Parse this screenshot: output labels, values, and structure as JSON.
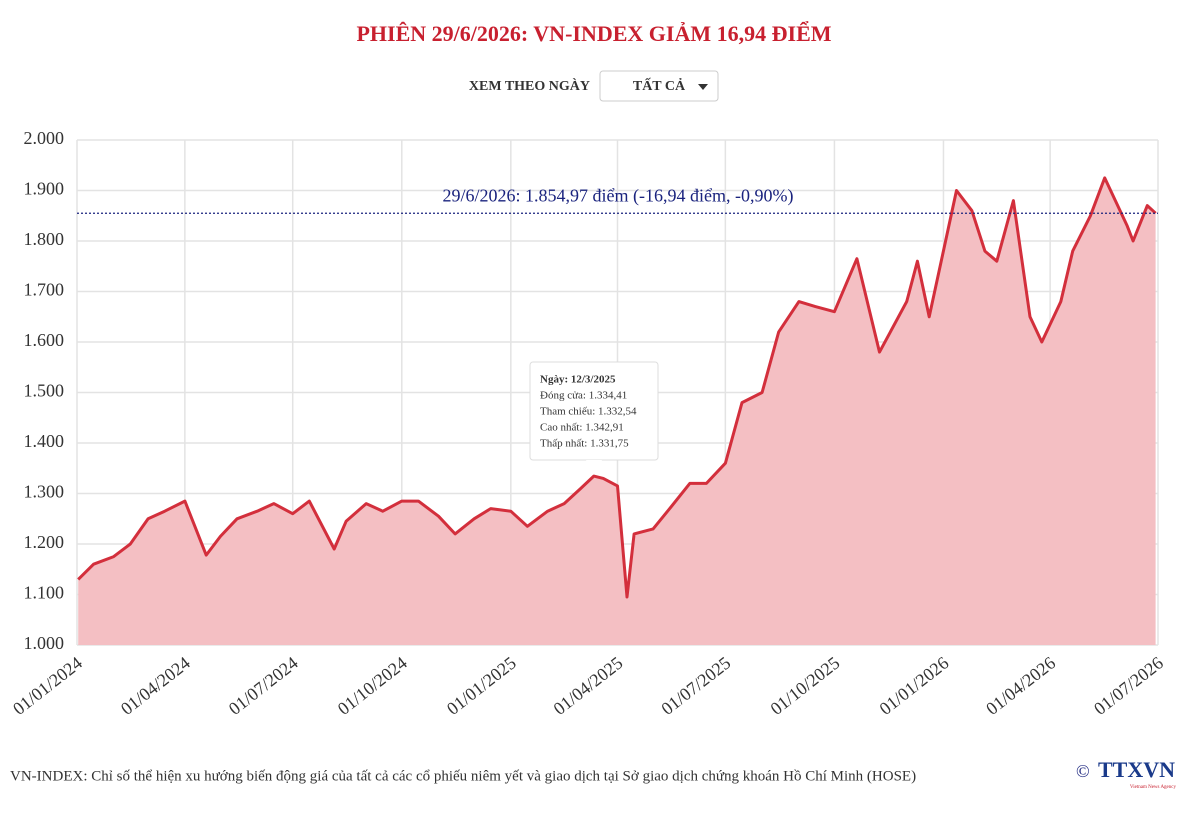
{
  "chart_data": {
    "type": "area",
    "title": "PHIÊN 29/6/2026: VN-INDEX GIẢM 16,94 ĐIỂM",
    "color": "#d32f3c",
    "fill_color": "#f4bfc3",
    "x": [
      "2024-01-02",
      "2024-01-15",
      "2024-02-01",
      "2024-02-15",
      "2024-03-01",
      "2024-03-15",
      "2024-04-01",
      "2024-04-19",
      "2024-05-01",
      "2024-05-15",
      "2024-06-01",
      "2024-06-15",
      "2024-07-01",
      "2024-07-15",
      "2024-08-05",
      "2024-08-15",
      "2024-09-01",
      "2024-09-15",
      "2024-10-01",
      "2024-10-15",
      "2024-11-01",
      "2024-11-15",
      "2024-12-01",
      "2024-12-15",
      "2025-01-01",
      "2025-01-15",
      "2025-02-01",
      "2025-02-15",
      "2025-03-01",
      "2025-03-12",
      "2025-03-20",
      "2025-04-01",
      "2025-04-09",
      "2025-04-15",
      "2025-05-01",
      "2025-05-15",
      "2025-06-01",
      "2025-06-15",
      "2025-07-01",
      "2025-07-15",
      "2025-08-01",
      "2025-08-15",
      "2025-09-01",
      "2025-09-15",
      "2025-10-01",
      "2025-10-20",
      "2025-11-08",
      "2025-12-01",
      "2025-12-10",
      "2025-12-20",
      "2026-01-12",
      "2026-01-25",
      "2026-02-05",
      "2026-02-15",
      "2026-03-01",
      "2026-03-15",
      "2026-03-25",
      "2026-04-10",
      "2026-04-20",
      "2026-05-05",
      "2026-05-17",
      "2026-06-05",
      "2026-06-10",
      "2026-06-22",
      "2026-06-29"
    ],
    "values": [
      1130,
      1160,
      1175,
      1200,
      1250,
      1265,
      1285,
      1178,
      1215,
      1250,
      1265,
      1280,
      1260,
      1285,
      1190,
      1245,
      1280,
      1265,
      1285,
      1285,
      1255,
      1220,
      1250,
      1270,
      1265,
      1235,
      1265,
      1280,
      1310,
      1334.41,
      1330,
      1315,
      1095,
      1220,
      1230,
      1270,
      1320,
      1320,
      1360,
      1480,
      1500,
      1620,
      1680,
      1670,
      1660,
      1765,
      1580,
      1680,
      1760,
      1650,
      1900,
      1860,
      1780,
      1760,
      1880,
      1650,
      1600,
      1680,
      1780,
      1850,
      1925,
      1830,
      1800,
      1870,
      1854.97
    ],
    "xlim": [
      "2024-01-01",
      "2026-07-01"
    ],
    "xticks": [
      {
        "value": "2024-01-01",
        "label": "01/01/2024"
      },
      {
        "value": "2024-04-01",
        "label": "01/04/2024"
      },
      {
        "value": "2024-07-01",
        "label": "01/07/2024"
      },
      {
        "value": "2024-10-01",
        "label": "01/10/2024"
      },
      {
        "value": "2025-01-01",
        "label": "01/01/2025"
      },
      {
        "value": "2025-04-01",
        "label": "01/04/2025"
      },
      {
        "value": "2025-07-01",
        "label": "01/07/2025"
      },
      {
        "value": "2025-10-01",
        "label": "01/10/2025"
      },
      {
        "value": "2026-01-01",
        "label": "01/01/2026"
      },
      {
        "value": "2026-04-01",
        "label": "01/04/2026"
      },
      {
        "value": "2026-07-01",
        "label": "01/07/2026"
      }
    ],
    "ylim": [
      1000,
      2000
    ],
    "yticks": [
      {
        "value": 1000,
        "label": "1.000"
      },
      {
        "value": 1100,
        "label": "1.100"
      },
      {
        "value": 1200,
        "label": "1.200"
      },
      {
        "value": 1300,
        "label": "1.300"
      },
      {
        "value": 1400,
        "label": "1.400"
      },
      {
        "value": 1500,
        "label": "1.500"
      },
      {
        "value": 1600,
        "label": "1.600"
      },
      {
        "value": 1700,
        "label": "1.700"
      },
      {
        "value": 1800,
        "label": "1.800"
      },
      {
        "value": 1900,
        "label": "1.900"
      },
      {
        "value": 2000,
        "label": "2.000"
      }
    ],
    "grid": true,
    "reference_line": {
      "value": 1854.97,
      "label": "29/6/2026: 1.854,97 điểm (-16,94 điểm, -0,90%)",
      "color": "#1a237e"
    },
    "tooltip": {
      "title": "Ngày: 12/3/2025",
      "lines": [
        "Đóng cửa: 1.334,41",
        "Tham chiếu: 1.332,54",
        "Cao nhất: 1.342,91",
        "Thấp nhất: 1.331,75"
      ]
    }
  },
  "controls": {
    "label": "XEM THEO NGÀY",
    "dropdown": "TẤT CẢ"
  },
  "footer": {
    "note": "VN-INDEX: Chỉ số thể hiện xu hướng biến động giá của tất cả các cổ phiếu niêm yết và giao dịch tại Sở giao dịch chứng khoán Hồ Chí Minh (HOSE)",
    "copyright": "©",
    "logo": "TTXVN",
    "logo_sub": "Vietnam News Agency"
  }
}
